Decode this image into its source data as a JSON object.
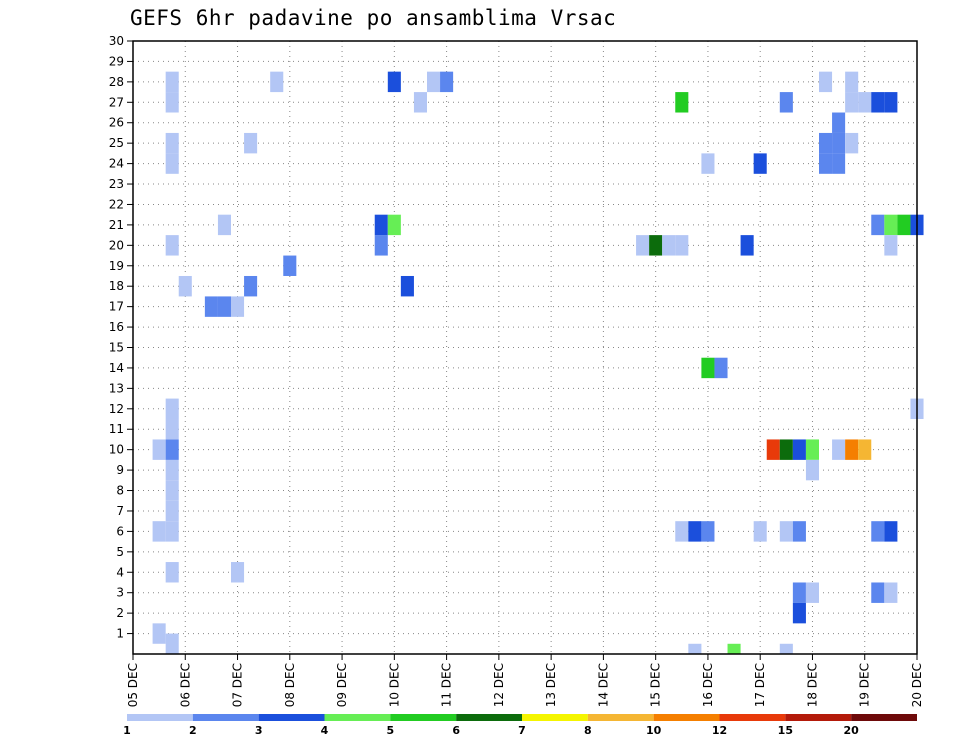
{
  "chart_data": {
    "type": "heatmap",
    "title": "GEFS 6hr padavine po ansamblima Vrsac",
    "x_ticks": [
      "05 DEC",
      "06 DEC",
      "07 DEC",
      "08 DEC",
      "09 DEC",
      "10 DEC",
      "11 DEC",
      "12 DEC",
      "13 DEC",
      "14 DEC",
      "15 DEC",
      "16 DEC",
      "17 DEC",
      "18 DEC",
      "19 DEC",
      "20 DEC"
    ],
    "y_ticks": [
      1,
      2,
      3,
      4,
      5,
      6,
      7,
      8,
      9,
      10,
      11,
      12,
      13,
      14,
      15,
      16,
      17,
      18,
      19,
      20,
      21,
      22,
      23,
      24,
      25,
      26,
      27,
      28,
      29,
      30
    ],
    "ylim": [
      0,
      30
    ],
    "x_steps": 60,
    "grid": true,
    "colorbar": {
      "labels": [
        "1",
        "2",
        "3",
        "4",
        "5",
        "6",
        "7",
        "8",
        "10",
        "12",
        "15",
        "20"
      ],
      "colors": [
        "#b3c6f5",
        "#5b86ee",
        "#1b4fdc",
        "#66ee55",
        "#22cc22",
        "#0c6c0c",
        "#f5f500",
        "#f5b633",
        "#f57f00",
        "#e83a0a",
        "#b41a0a",
        "#6e0a0a"
      ]
    },
    "cells": [
      {
        "t": 2,
        "m": 1,
        "v": 1.5
      },
      {
        "t": 2,
        "m": 6,
        "v": 1.5
      },
      {
        "t": 2,
        "m": 10,
        "v": 1.5
      },
      {
        "t": 3,
        "m": 0.5,
        "v": 1.5
      },
      {
        "t": 3,
        "m": 4,
        "v": 1.5
      },
      {
        "t": 3,
        "m": 6,
        "v": 1.5
      },
      {
        "t": 3,
        "m": 7,
        "v": 1.5
      },
      {
        "t": 3,
        "m": 8,
        "v": 1.5
      },
      {
        "t": 3,
        "m": 9,
        "v": 1.5
      },
      {
        "t": 3,
        "m": 10,
        "v": 2.5
      },
      {
        "t": 3,
        "m": 11,
        "v": 1.5
      },
      {
        "t": 3,
        "m": 12,
        "v": 1.5
      },
      {
        "t": 3,
        "m": 20,
        "v": 1.5
      },
      {
        "t": 3,
        "m": 24,
        "v": 1.5
      },
      {
        "t": 3,
        "m": 25,
        "v": 1.5
      },
      {
        "t": 3,
        "m": 27,
        "v": 1.5
      },
      {
        "t": 3,
        "m": 28,
        "v": 1.5
      },
      {
        "t": 4,
        "m": 18,
        "v": 1.5
      },
      {
        "t": 6,
        "m": 17,
        "v": 2.5
      },
      {
        "t": 7,
        "m": 17,
        "v": 2.5
      },
      {
        "t": 7,
        "m": 21,
        "v": 1.5
      },
      {
        "t": 8,
        "m": 4,
        "v": 1.5
      },
      {
        "t": 8,
        "m": 17,
        "v": 1.5
      },
      {
        "t": 9,
        "m": 18,
        "v": 2.5
      },
      {
        "t": 9,
        "m": 25,
        "v": 1.5
      },
      {
        "t": 11,
        "m": 28,
        "v": 1.5
      },
      {
        "t": 12,
        "m": 19,
        "v": 2.5
      },
      {
        "t": 19,
        "m": 20,
        "v": 2.5
      },
      {
        "t": 19,
        "m": 21,
        "v": 3.5
      },
      {
        "t": 20,
        "m": 21,
        "v": 4.5
      },
      {
        "t": 20,
        "m": 28,
        "v": 3.5
      },
      {
        "t": 21,
        "m": 18,
        "v": 3.5
      },
      {
        "t": 22,
        "m": 27,
        "v": 1.5
      },
      {
        "t": 23,
        "m": 28,
        "v": 1.5
      },
      {
        "t": 24,
        "m": 28,
        "v": 2.5
      },
      {
        "t": 39,
        "m": 20,
        "v": 1.5
      },
      {
        "t": 40,
        "m": 20,
        "v": 6.5
      },
      {
        "t": 41,
        "m": 20,
        "v": 1.5
      },
      {
        "t": 42,
        "m": 20,
        "v": 1.5
      },
      {
        "t": 42,
        "m": 27,
        "v": 5.5
      },
      {
        "t": 42,
        "m": 6,
        "v": 1.5
      },
      {
        "t": 43,
        "m": 0,
        "v": 1.5
      },
      {
        "t": 43,
        "m": 6,
        "v": 3.5
      },
      {
        "t": 44,
        "m": 6,
        "v": 2.5
      },
      {
        "t": 44,
        "m": 14,
        "v": 5.5
      },
      {
        "t": 44,
        "m": 24,
        "v": 1.5
      },
      {
        "t": 45,
        "m": 14,
        "v": 2.5
      },
      {
        "t": 46,
        "m": 0,
        "v": 4.5
      },
      {
        "t": 47,
        "m": 20,
        "v": 3.5
      },
      {
        "t": 48,
        "m": 6,
        "v": 1.5
      },
      {
        "t": 48,
        "m": 24,
        "v": 3.5
      },
      {
        "t": 49,
        "m": 10,
        "v": 14
      },
      {
        "t": 50,
        "m": 10,
        "v": 6.5
      },
      {
        "t": 50,
        "m": 0,
        "v": 1.5
      },
      {
        "t": 50,
        "m": 6,
        "v": 1.5
      },
      {
        "t": 50,
        "m": 27,
        "v": 2.5
      },
      {
        "t": 51,
        "m": 10,
        "v": 3.5
      },
      {
        "t": 51,
        "m": 6,
        "v": 2.5
      },
      {
        "t": 51,
        "m": 3,
        "v": 2.5
      },
      {
        "t": 51,
        "m": 2,
        "v": 3.5
      },
      {
        "t": 52,
        "m": 10,
        "v": 4.5
      },
      {
        "t": 52,
        "m": 9,
        "v": 1.5
      },
      {
        "t": 52,
        "m": 3,
        "v": 1.5
      },
      {
        "t": 53,
        "m": 28,
        "v": 1.5
      },
      {
        "t": 53,
        "m": 25,
        "v": 2.5
      },
      {
        "t": 53,
        "m": 24,
        "v": 2.5
      },
      {
        "t": 54,
        "m": 10,
        "v": 1.5
      },
      {
        "t": 54,
        "m": 26,
        "v": 2.5
      },
      {
        "t": 54,
        "m": 25,
        "v": 2.5
      },
      {
        "t": 54,
        "m": 24,
        "v": 2.5
      },
      {
        "t": 55,
        "m": 10,
        "v": 11
      },
      {
        "t": 55,
        "m": 28,
        "v": 1.5
      },
      {
        "t": 55,
        "m": 27,
        "v": 1.5
      },
      {
        "t": 55,
        "m": 25,
        "v": 1.5
      },
      {
        "t": 56,
        "m": 10,
        "v": 8.5
      },
      {
        "t": 56,
        "m": 27,
        "v": 1.5
      },
      {
        "t": 57,
        "m": 21,
        "v": 2.5
      },
      {
        "t": 57,
        "m": 27,
        "v": 3.5
      },
      {
        "t": 57,
        "m": 6,
        "v": 2.5
      },
      {
        "t": 57,
        "m": 3,
        "v": 2.5
      },
      {
        "t": 58,
        "m": 21,
        "v": 4.5
      },
      {
        "t": 58,
        "m": 20,
        "v": 1.5
      },
      {
        "t": 58,
        "m": 27,
        "v": 3.5
      },
      {
        "t": 58,
        "m": 6,
        "v": 3.5
      },
      {
        "t": 58,
        "m": 3,
        "v": 1.5
      },
      {
        "t": 59,
        "m": 21,
        "v": 5.5
      },
      {
        "t": 60,
        "m": 21,
        "v": 3.5
      },
      {
        "t": 60,
        "m": 12,
        "v": 1.5
      }
    ]
  }
}
